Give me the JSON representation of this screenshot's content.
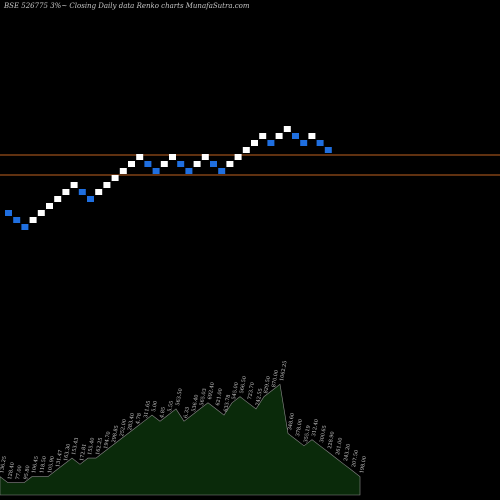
{
  "header": {
    "title": "BSE 526775 3%~  Closing Daily data  Renko  charts MunafaSutra.com"
  },
  "colors": {
    "background": "#000000",
    "up_brick": "#ffffff",
    "down_brick": "#1f6fe0",
    "reference_line": "#c0621f",
    "volume_fill": "#0a2a0a",
    "volume_outline": "#8a8a8a",
    "volume_label": "#d0d0d0"
  },
  "chart_data": [
    {
      "type": "renko",
      "title": "BSE 526775 3%~  Closing Daily data  Renko  charts MunafaSutra.com",
      "y_unit": "bricks",
      "bricks": [
        {
          "dir": "down",
          "level": 0
        },
        {
          "dir": "down",
          "level": -1
        },
        {
          "dir": "down",
          "level": -2
        },
        {
          "dir": "up",
          "level": -1
        },
        {
          "dir": "up",
          "level": 0
        },
        {
          "dir": "up",
          "level": 1
        },
        {
          "dir": "up",
          "level": 2
        },
        {
          "dir": "up",
          "level": 3
        },
        {
          "dir": "up",
          "level": 4
        },
        {
          "dir": "down",
          "level": 3
        },
        {
          "dir": "down",
          "level": 2
        },
        {
          "dir": "up",
          "level": 3
        },
        {
          "dir": "up",
          "level": 4
        },
        {
          "dir": "up",
          "level": 5
        },
        {
          "dir": "up",
          "level": 6
        },
        {
          "dir": "up",
          "level": 7
        },
        {
          "dir": "up",
          "level": 8
        },
        {
          "dir": "down",
          "level": 7
        },
        {
          "dir": "down",
          "level": 6
        },
        {
          "dir": "up",
          "level": 7
        },
        {
          "dir": "up",
          "level": 8
        },
        {
          "dir": "down",
          "level": 7
        },
        {
          "dir": "down",
          "level": 6
        },
        {
          "dir": "up",
          "level": 7
        },
        {
          "dir": "up",
          "level": 8
        },
        {
          "dir": "down",
          "level": 7
        },
        {
          "dir": "down",
          "level": 6
        },
        {
          "dir": "up",
          "level": 7
        },
        {
          "dir": "up",
          "level": 8
        },
        {
          "dir": "up",
          "level": 9
        },
        {
          "dir": "up",
          "level": 10
        },
        {
          "dir": "up",
          "level": 11
        },
        {
          "dir": "down",
          "level": 10
        },
        {
          "dir": "up",
          "level": 11
        },
        {
          "dir": "up",
          "level": 12
        },
        {
          "dir": "down",
          "level": 11
        },
        {
          "dir": "down",
          "level": 10
        },
        {
          "dir": "up",
          "level": 11
        },
        {
          "dir": "down",
          "level": 10
        },
        {
          "dir": "down",
          "level": 9
        }
      ],
      "reference_levels": [
        8.5,
        5.5
      ]
    },
    {
      "type": "area",
      "series_role": "volume",
      "values": [
        3,
        2,
        2,
        2,
        3,
        3,
        3,
        4,
        5,
        6,
        5,
        6,
        6,
        7,
        8,
        9,
        10,
        11,
        12,
        13,
        12,
        13,
        14,
        12,
        13,
        14,
        15,
        14,
        13,
        15,
        16,
        15,
        14,
        16,
        17,
        18,
        10,
        9,
        8,
        9,
        8,
        7,
        6,
        5,
        4,
        3
      ],
      "labels": [
        "136.25",
        "128.40",
        "77.00",
        "95.80",
        "106.45",
        "118.50",
        "105.90",
        "131.47",
        "163.30",
        "153.43",
        "172.81",
        "155.40",
        "162.25",
        "194.70",
        "298.85",
        "252.00",
        "283.40",
        "4.78",
        "311.65",
        "5.00",
        "4.85",
        "5.55",
        "563.50",
        "6.33",
        "536.40",
        "565.03",
        "692.40",
        "621.00",
        "633.78",
        "545.00",
        "566.50",
        "723.70",
        "742.55",
        "829.50",
        "870.00",
        "1062.25",
        "348.60",
        "378.00",
        "355.19",
        "312.40",
        "300.65",
        "228.90",
        "261.00",
        "243.20",
        "207.50",
        "198.00"
      ]
    }
  ]
}
